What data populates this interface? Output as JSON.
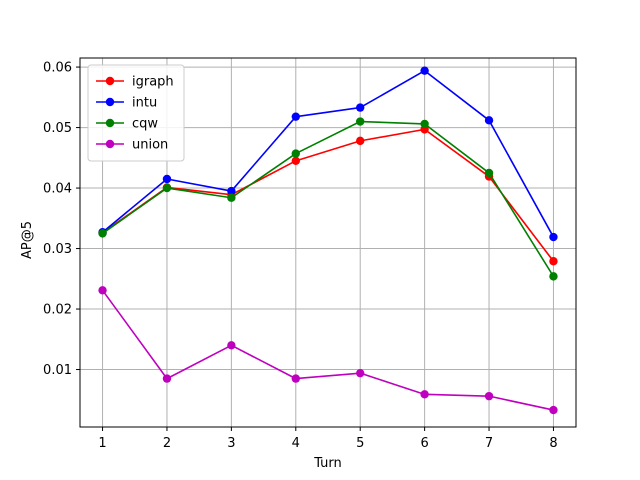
{
  "chart_data": {
    "type": "line",
    "title": "",
    "xlabel": "Turn",
    "ylabel": "AP@5",
    "x": [
      1,
      2,
      3,
      4,
      5,
      6,
      7,
      8
    ],
    "xticks": [
      "1",
      "2",
      "3",
      "4",
      "5",
      "6",
      "7",
      "8"
    ],
    "xlim": [
      0.65,
      8.35
    ],
    "ylim": [
      0.0005,
      0.0615
    ],
    "yticks": [
      "0.01",
      "0.02",
      "0.03",
      "0.04",
      "0.05",
      "0.06"
    ],
    "grid": true,
    "legend_position": "top-left",
    "series": [
      {
        "name": "igraph",
        "color": "#ff0000",
        "values": [
          0.0326,
          0.0401,
          0.0389,
          0.0445,
          0.0478,
          0.0497,
          0.0419,
          0.0279
        ]
      },
      {
        "name": "intu",
        "color": "#0000ff",
        "values": [
          0.0327,
          0.0415,
          0.0395,
          0.0518,
          0.0533,
          0.0594,
          0.0512,
          0.0319
        ]
      },
      {
        "name": "cqw",
        "color": "#008000",
        "values": [
          0.0325,
          0.04,
          0.0384,
          0.0457,
          0.051,
          0.0506,
          0.0425,
          0.0254
        ]
      },
      {
        "name": "union",
        "color": "#bf00bf",
        "values": [
          0.0231,
          0.0085,
          0.014,
          0.0085,
          0.0094,
          0.0059,
          0.0056,
          0.0033
        ]
      }
    ]
  }
}
